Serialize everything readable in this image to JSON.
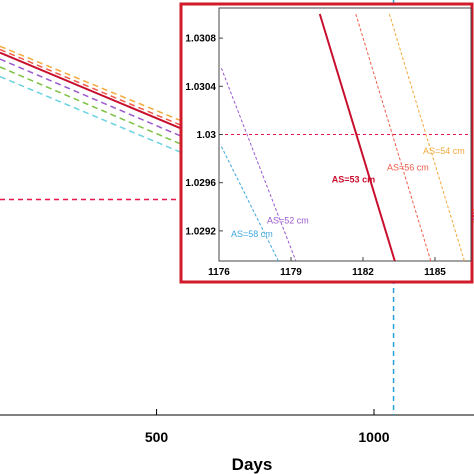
{
  "chart_data": [
    {
      "type": "line",
      "xlabel": "Days",
      "xlim": [
        140,
        1230
      ],
      "ylim": [
        1.0165,
        1.0425
      ],
      "x_ticks": [
        500,
        1000
      ],
      "x_tick_labels": [
        "500",
        "1000"
      ],
      "grid": false,
      "reference_lines": [
        {
          "orientation": "horizontal",
          "y": 1.03,
          "color": "#e8174d"
        },
        {
          "orientation": "vertical",
          "x": 1045,
          "color": "#2aa0d8"
        }
      ],
      "series": [
        {
          "color": "#c8102e",
          "style": "solid",
          "x": [
            140,
            640,
            1230
          ],
          "y": [
            1.0392,
            1.0335,
            1.02895
          ]
        },
        {
          "color": "#f2a93b",
          "style": "dashed",
          "x": [
            140,
            640,
            1230
          ],
          "y": [
            1.0396,
            1.034,
            1.02935
          ]
        },
        {
          "color": "#ef5d4a",
          "style": "dashed",
          "x": [
            140,
            640,
            1230
          ],
          "y": [
            1.0394,
            1.0337,
            1.02915
          ]
        },
        {
          "color": "#9b59d0",
          "style": "dashed",
          "x": [
            140,
            640,
            1230
          ],
          "y": [
            1.0388,
            1.033,
            1.02875
          ]
        },
        {
          "color": "#7cc242",
          "style": "dashed",
          "x": [
            140,
            640,
            1230
          ],
          "y": [
            1.0383,
            1.0325,
            1.0286
          ]
        },
        {
          "color": "#6ad3e0",
          "style": "dashed",
          "x": [
            140,
            640,
            1230
          ],
          "y": [
            1.0377,
            1.032,
            1.02845
          ]
        }
      ]
    },
    {
      "type": "line",
      "role": "inset",
      "xlim": [
        1176,
        1186.5
      ],
      "ylim": [
        1.02895,
        1.03105
      ],
      "x_ticks": [
        1176,
        1179,
        1182,
        1185
      ],
      "x_tick_labels": [
        "1176",
        "1179",
        "1182",
        "1185"
      ],
      "y_ticks": [
        1.0292,
        1.0296,
        1.03,
        1.0304,
        1.0308
      ],
      "y_tick_labels": [
        "1.0292",
        "1.0296",
        "1.03",
        "1.0304",
        "1.0308"
      ],
      "reference_lines": [
        {
          "orientation": "horizontal",
          "y": 1.03,
          "color": "#e8174d"
        }
      ],
      "series": [
        {
          "name": "AS=53 cm",
          "color": "#c8102e",
          "style": "solid",
          "x": [
            1180.2,
            1183.4
          ],
          "y": [
            1.031,
            1.0289
          ]
        },
        {
          "name": "AS=54 cm",
          "color": "#f2a93b",
          "style": "dashed",
          "x": [
            1183.1,
            1186.3
          ],
          "y": [
            1.031,
            1.0289
          ]
        },
        {
          "name": "AS=56 cm",
          "color": "#ef5d4a",
          "style": "dashed",
          "x": [
            1181.7,
            1184.9
          ],
          "y": [
            1.031,
            1.0289
          ]
        },
        {
          "name": "AS=52 cm",
          "color": "#9b59d0",
          "style": "dashed",
          "x": [
            1176.1,
            1179.3
          ],
          "y": [
            1.03055,
            1.0289
          ]
        },
        {
          "name": "AS=58 cm",
          "color": "#3fa7de",
          "style": "dashed",
          "x": [
            1176.1,
            1178.6
          ],
          "y": [
            1.0299,
            1.0289
          ]
        }
      ],
      "annotations": [
        {
          "text": "AS=54 cm",
          "x": 1184.5,
          "y": 1.02984,
          "color": "#f2a93b"
        },
        {
          "text": "AS=56 cm",
          "x": 1183.0,
          "y": 1.0297,
          "color": "#ef5d4a"
        },
        {
          "text": "AS=53 cm",
          "x": 1180.7,
          "y": 1.0296,
          "color": "#c8102e"
        },
        {
          "text": "AS=52 cm",
          "x": 1178.0,
          "y": 1.02926,
          "color": "#9b59d0"
        },
        {
          "text": "AS=58 cm",
          "x": 1176.5,
          "y": 1.02915,
          "color": "#3fa7de"
        }
      ]
    }
  ]
}
